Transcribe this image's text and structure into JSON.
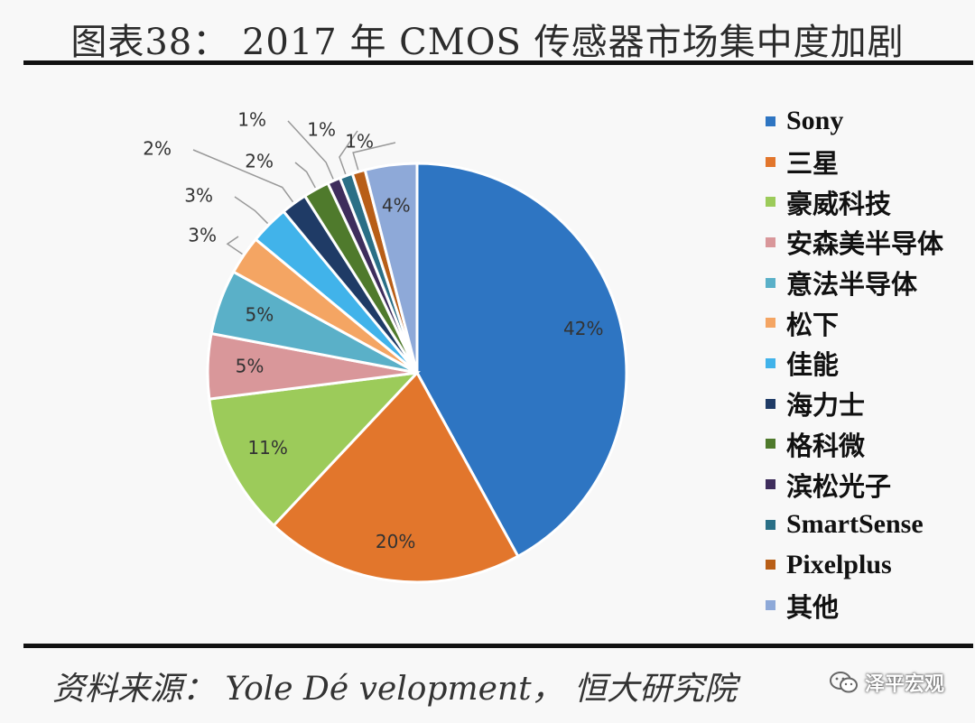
{
  "title": "图表38： 2017 年 CMOS 传感器市场集中度加剧",
  "source": "资料来源： Yole Dé velopment， 恒大研究院",
  "watermark": {
    "icon": "wechat-icon",
    "text": "泽平宏观"
  },
  "chart_data": {
    "type": "pie",
    "legend_position": "right",
    "start": "top, clockwise",
    "slices": [
      {
        "name": "Sony",
        "value": 42,
        "label": "42%",
        "color": "#2e75c2"
      },
      {
        "name": "三星",
        "value": 20,
        "label": "20%",
        "color": "#e2762c"
      },
      {
        "name": "豪威科技",
        "value": 11,
        "label": "11%",
        "color": "#9ccb5a"
      },
      {
        "name": "安森美半导体",
        "value": 5,
        "label": "5%",
        "color": "#d9979a"
      },
      {
        "name": "意法半导体",
        "value": 5,
        "label": "5%",
        "color": "#5ab0c8"
      },
      {
        "name": "松下",
        "value": 3,
        "label": "3%",
        "color": "#f4a563"
      },
      {
        "name": "佳能",
        "value": 3,
        "label": "3%",
        "color": "#41b3ea"
      },
      {
        "name": "海力士",
        "value": 2,
        "label": "2%",
        "color": "#1f3b66"
      },
      {
        "name": "格科微",
        "value": 2,
        "label": "2%",
        "color": "#4f7a2c"
      },
      {
        "name": "滨松光子",
        "value": 1,
        "label": "1%",
        "color": "#3e2d5c"
      },
      {
        "name": "SmartSense",
        "value": 1,
        "label": "1%",
        "color": "#2a6f86"
      },
      {
        "name": "Pixelplus",
        "value": 1,
        "label": "1%",
        "color": "#b85e17"
      },
      {
        "name": "其他",
        "value": 4,
        "label": "4%",
        "color": "#8ea9d8"
      }
    ]
  }
}
